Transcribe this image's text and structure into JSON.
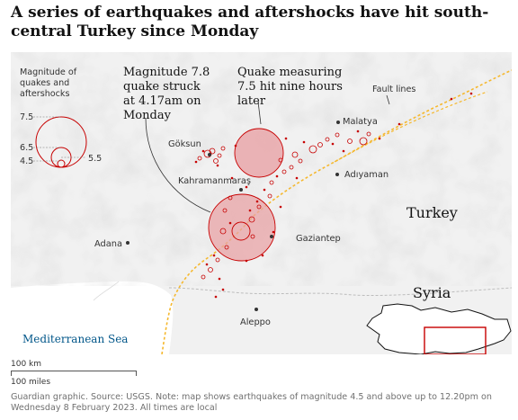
{
  "headline": "A series of earthquakes and aftershocks have hit south-central Turkey since Monday",
  "legend": {
    "title": "Magnitude of quakes and aftershocks",
    "ticks": [
      "7.5",
      "6.5",
      "4.5",
      "5.5"
    ]
  },
  "annotations": {
    "first_quake": "Magnitude 7.8 quake struck at 4.17am on Monday",
    "second_quake": "Quake measuring 7.5 hit nine hours later",
    "fault_lines": "Fault lines"
  },
  "places": {
    "goksun": "Göksun",
    "malatya": "Malatya",
    "kahramanmaras": "Kahramanmaraş",
    "adiyaman": "Adıyaman",
    "gaziantep": "Gaziantep",
    "adana": "Adana",
    "aleppo": "Aleppo"
  },
  "countries": {
    "turkey": "Turkey",
    "syria": "Syria"
  },
  "sea": "Mediterranean Sea",
  "scale": {
    "km": "100 km",
    "miles": "100 miles"
  },
  "footer": "Guardian graphic. Source: USGS. Note: map shows earthquakes of magnitude 4.5 and above up to 12.20pm on Wednesday 8 February 2023. All times are local",
  "colors": {
    "quake_fill": "#e8a3a6",
    "quake_stroke": "#c70000",
    "fault_line": "#f5b82e",
    "sea_label": "#005689",
    "land": "#f1f1f1"
  }
}
